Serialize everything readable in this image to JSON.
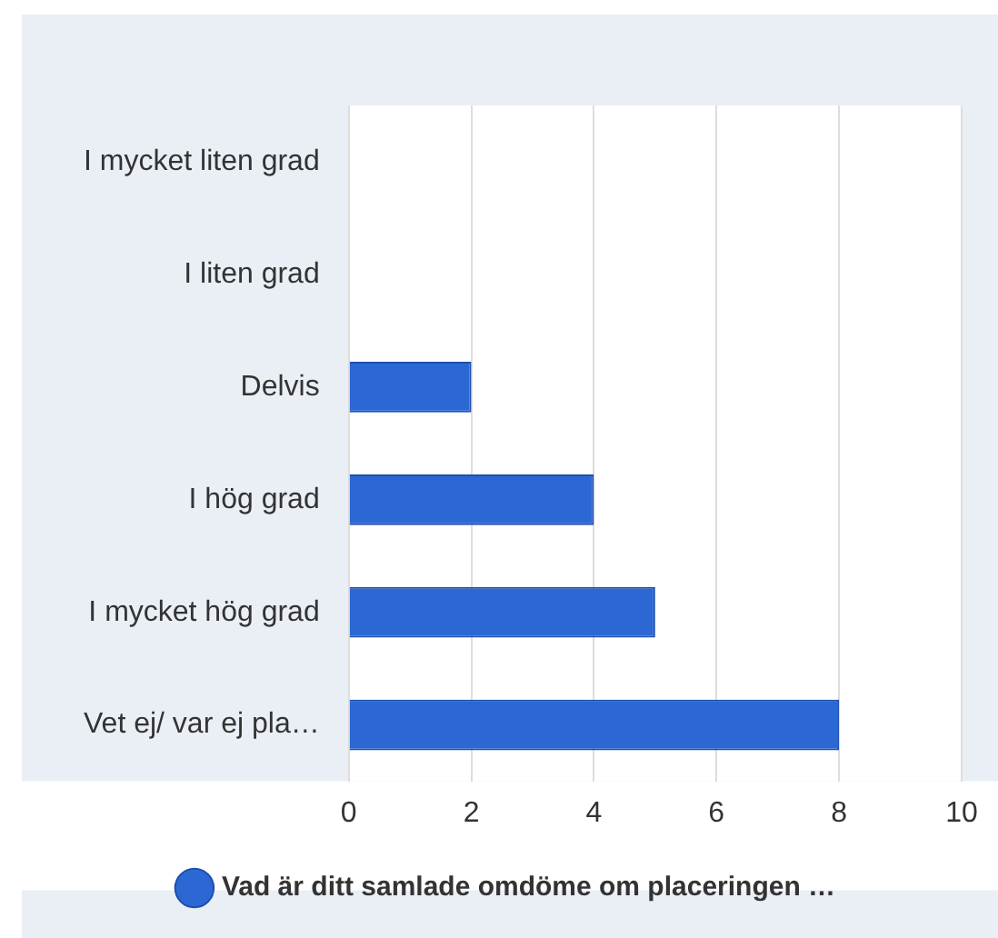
{
  "chart_data": {
    "type": "bar",
    "orientation": "horizontal",
    "categories": [
      "I mycket liten grad",
      "I liten grad",
      "Delvis",
      "I hög grad",
      "I mycket hög grad",
      "Vet ej/ var ej pla…"
    ],
    "series": [
      {
        "name": "Vad är ditt samlade omdöme om placeringen …",
        "color": "#2c68d4",
        "values": [
          0,
          0,
          2,
          4,
          5,
          8
        ]
      }
    ],
    "xlim": [
      0,
      10
    ],
    "xticks": [
      0,
      2,
      4,
      6,
      8,
      10
    ],
    "grid": "x",
    "legend": "bottom"
  }
}
